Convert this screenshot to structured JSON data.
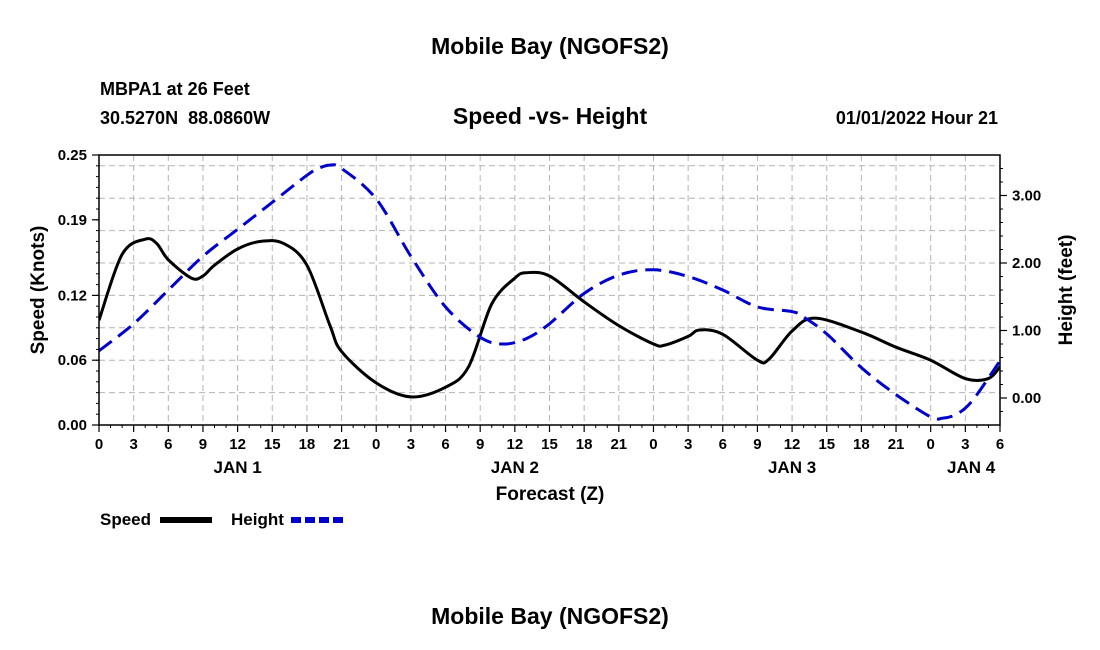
{
  "header": {
    "title": "Mobile Bay (NGOFS2)",
    "station": "MBPA1 at 26 Feet",
    "coords": "30.5270N  88.0860W",
    "subtitle": "Speed -vs- Height",
    "datetime": "01/01/2022 Hour 21",
    "footer_title": "Mobile Bay (NGOFS2)"
  },
  "legend": {
    "speed_label": "Speed",
    "height_label": "Height"
  },
  "colors": {
    "speed": "#000000",
    "height": "#0000cc",
    "grid": "#b4b4b4"
  },
  "chart_data": {
    "type": "line",
    "xlabel": "Forecast (Z)",
    "ylabel": "Speed (Knots)",
    "y2label": "Height (feet)",
    "xlim": [
      0,
      78
    ],
    "ylim": [
      0,
      0.25
    ],
    "y2lim": [
      -0.4,
      3.6
    ],
    "x_ticks": [
      0,
      3,
      6,
      9,
      12,
      15,
      18,
      21,
      24,
      27,
      30,
      33,
      36,
      39,
      42,
      45,
      48,
      51,
      54,
      57,
      60,
      63,
      66,
      69,
      72,
      75,
      78
    ],
    "x_tick_labels": [
      "0",
      "3",
      "6",
      "9",
      "12",
      "15",
      "18",
      "21",
      "0",
      "3",
      "6",
      "9",
      "12",
      "15",
      "18",
      "21",
      "0",
      "3",
      "6",
      "9",
      "12",
      "15",
      "18",
      "21",
      "0",
      "3",
      "6"
    ],
    "y_ticks": [
      0,
      0.06,
      0.12,
      0.19,
      0.25
    ],
    "y_tick_labels": [
      "0.00",
      "0.06",
      "0.12",
      "0.19",
      "0.25"
    ],
    "y2_ticks": [
      0,
      1,
      2,
      3
    ],
    "y2_tick_labels": [
      "0.00",
      "1.00",
      "2.00",
      "3.00"
    ],
    "day_labels": [
      {
        "x": 12,
        "label": "JAN 1"
      },
      {
        "x": 36,
        "label": "JAN 2"
      },
      {
        "x": 60,
        "label": "JAN 3"
      },
      {
        "x": 75.5,
        "label": "JAN 4"
      }
    ],
    "series": [
      {
        "name": "Speed",
        "axis": "left",
        "style": "solid",
        "x": [
          0,
          2,
          4,
          5,
          6,
          8,
          9,
          10,
          12,
          14,
          16,
          18,
          20,
          21,
          24,
          27,
          30,
          32,
          34,
          36,
          37,
          39,
          42,
          45,
          48,
          49,
          51,
          52,
          54,
          57,
          58,
          60,
          62,
          66,
          69,
          72,
          75,
          77,
          78
        ],
        "y": [
          0.097,
          0.158,
          0.172,
          0.168,
          0.153,
          0.136,
          0.138,
          0.148,
          0.163,
          0.17,
          0.168,
          0.148,
          0.092,
          0.068,
          0.039,
          0.026,
          0.035,
          0.054,
          0.112,
          0.136,
          0.141,
          0.138,
          0.114,
          0.092,
          0.075,
          0.074,
          0.082,
          0.088,
          0.084,
          0.06,
          0.061,
          0.087,
          0.099,
          0.086,
          0.072,
          0.06,
          0.043,
          0.043,
          0.054
        ]
      },
      {
        "name": "Height",
        "axis": "right",
        "style": "dashed",
        "x": [
          0,
          3,
          6,
          9,
          12,
          15,
          18,
          19,
          20,
          21,
          24,
          27,
          30,
          33,
          35,
          37,
          39,
          42,
          45,
          48,
          51,
          54,
          57,
          60,
          61,
          63,
          66,
          69,
          72,
          73,
          74,
          75,
          76,
          78
        ],
        "y": [
          0.7,
          1.1,
          1.6,
          2.1,
          2.5,
          2.9,
          3.3,
          3.4,
          3.45,
          3.4,
          2.95,
          2.1,
          1.35,
          0.9,
          0.8,
          0.88,
          1.1,
          1.55,
          1.82,
          1.9,
          1.8,
          1.6,
          1.35,
          1.28,
          1.2,
          0.95,
          0.45,
          0.05,
          -0.28,
          -0.3,
          -0.26,
          -0.15,
          0.05,
          0.55
        ]
      }
    ]
  }
}
